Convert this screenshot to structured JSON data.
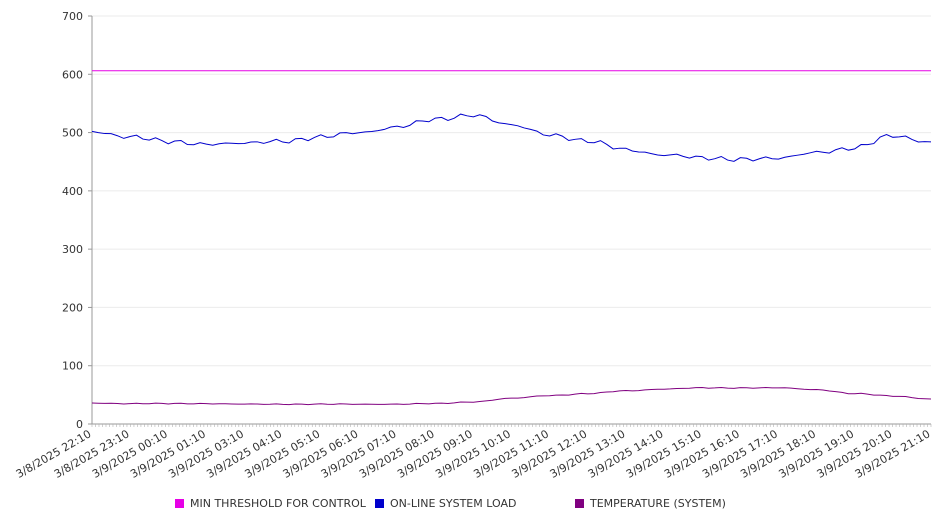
{
  "chart_data": {
    "type": "line",
    "ylim": [
      0,
      700
    ],
    "y_ticks": [
      0,
      100,
      200,
      300,
      400,
      500,
      600,
      700
    ],
    "x_tick_labels": [
      "3/8/2025 22:10",
      "3/8/2025 23:10",
      "3/9/2025 00:10",
      "3/9/2025 01:10",
      "3/9/2025 03:10",
      "3/9/2025 04:10",
      "3/9/2025 05:10",
      "3/9/2025 06:10",
      "3/9/2025 07:10",
      "3/9/2025 08:10",
      "3/9/2025 09:10",
      "3/9/2025 10:10",
      "3/9/2025 11:10",
      "3/9/2025 12:10",
      "3/9/2025 13:10",
      "3/9/2025 14:10",
      "3/9/2025 15:10",
      "3/9/2025 16:10",
      "3/9/2025 17:10",
      "3/9/2025 18:10",
      "3/9/2025 19:10",
      "3/9/2025 20:10",
      "3/9/2025 21:10"
    ],
    "grid": true,
    "legend_position": "bottom",
    "series": [
      {
        "name": "MIN THRESHOLD FOR CONTROL",
        "color": "#e600e6",
        "values": [
          606,
          606,
          606,
          606,
          606,
          606,
          606,
          606,
          606,
          606,
          606,
          606,
          606,
          606,
          606,
          606,
          606,
          606,
          606,
          606,
          606,
          606,
          606
        ]
      },
      {
        "name": "ON-LINE SYSTEM LOAD",
        "color": "#0000cc",
        "values": [
          502,
          493,
          484,
          481,
          481,
          486,
          492,
          500,
          510,
          522,
          531,
          512,
          497,
          485,
          471,
          462,
          456,
          455,
          455,
          467,
          473,
          495,
          484
        ]
      },
      {
        "name": "TEMPERATURE (SYSTEM)",
        "color": "#800080",
        "values": [
          36,
          35,
          35,
          35,
          34,
          34,
          34,
          34,
          34,
          35,
          38,
          44,
          49,
          52,
          57,
          60,
          62,
          62,
          62,
          59,
          52,
          48,
          43
        ]
      }
    ]
  }
}
